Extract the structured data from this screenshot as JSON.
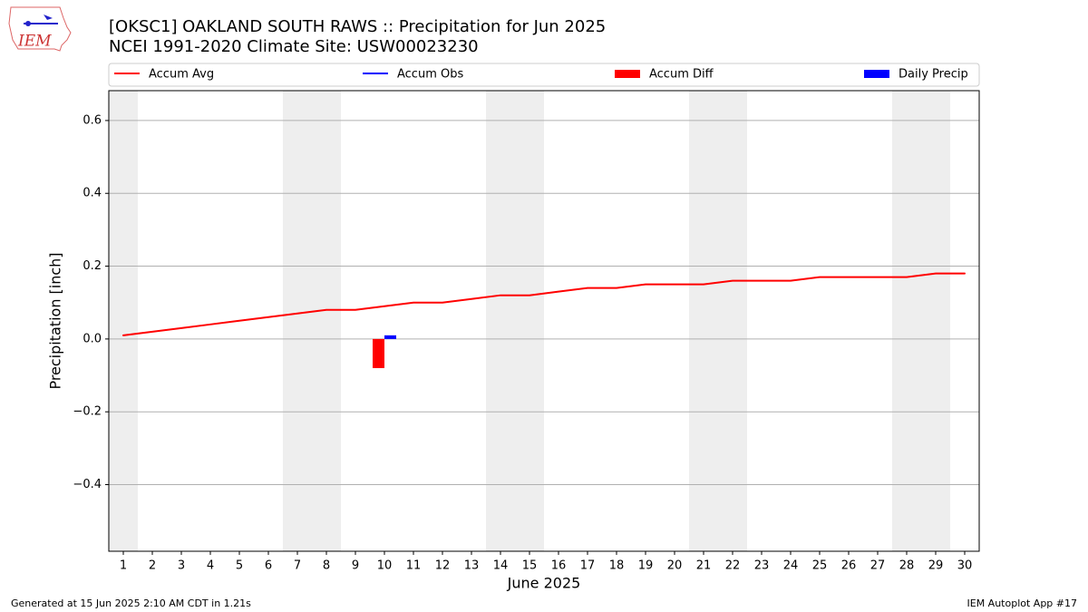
{
  "chart_data": {
    "type": "line",
    "title": "[OKSC1] OAKLAND SOUTH RAWS :: Precipitation for Jun 2025",
    "subtitle": "NCEI 1991-2020 Climate Site: USW00023230",
    "xlabel": "June 2025",
    "ylabel": "Precipitation [inch]",
    "x": [
      1,
      2,
      3,
      4,
      5,
      6,
      7,
      8,
      9,
      10,
      11,
      12,
      13,
      14,
      15,
      16,
      17,
      18,
      19,
      20,
      21,
      22,
      23,
      24,
      25,
      26,
      27,
      28,
      29,
      30
    ],
    "series": [
      {
        "name": "Accum Avg",
        "type": "line",
        "color": "#ff0000",
        "values": [
          0.01,
          0.02,
          0.03,
          0.04,
          0.05,
          0.06,
          0.07,
          0.08,
          0.08,
          0.09,
          0.1,
          0.1,
          0.11,
          0.12,
          0.12,
          0.13,
          0.14,
          0.14,
          0.15,
          0.15,
          0.15,
          0.16,
          0.16,
          0.16,
          0.17,
          0.17,
          0.17,
          0.17,
          0.18,
          0.18
        ]
      },
      {
        "name": "Accum Obs",
        "type": "line",
        "color": "#0000ff",
        "values": [
          null,
          null,
          null,
          null,
          null,
          null,
          null,
          null,
          null,
          0.01,
          null,
          null,
          null,
          null,
          null,
          null,
          null,
          null,
          null,
          null,
          null,
          null,
          null,
          null,
          null,
          null,
          null,
          null,
          null,
          null
        ]
      },
      {
        "name": "Accum Diff",
        "type": "bar",
        "color": "#ff0000",
        "values": [
          null,
          null,
          null,
          null,
          null,
          null,
          null,
          null,
          null,
          -0.08,
          null,
          null,
          null,
          null,
          null,
          null,
          null,
          null,
          null,
          null,
          null,
          null,
          null,
          null,
          null,
          null,
          null,
          null,
          null,
          null
        ]
      },
      {
        "name": "Daily Precip",
        "type": "bar",
        "color": "#0000ff",
        "values": [
          null,
          null,
          null,
          null,
          null,
          null,
          null,
          null,
          null,
          0.01,
          null,
          null,
          null,
          null,
          null,
          null,
          null,
          null,
          null,
          null,
          null,
          null,
          null,
          null,
          null,
          null,
          null,
          null,
          null,
          null
        ]
      }
    ],
    "xlim": [
      0.5,
      30.5
    ],
    "xticks": [
      1,
      2,
      3,
      4,
      5,
      6,
      7,
      8,
      9,
      10,
      11,
      12,
      13,
      14,
      15,
      16,
      17,
      18,
      19,
      20,
      21,
      22,
      23,
      24,
      25,
      26,
      27,
      28,
      29,
      30
    ],
    "ylim": [
      -0.583,
      0.682
    ],
    "yticks": [
      {
        "value": -0.4,
        "label": "−0.4"
      },
      {
        "value": -0.2,
        "label": "−0.2"
      },
      {
        "value": 0,
        "label": "0.0"
      },
      0.2,
      0.4,
      0.6
    ],
    "grid": true
  },
  "logo": "IEM",
  "footer_left": "Generated at 15 Jun 2025 2:10 AM CDT in 1.21s",
  "footer_right": "IEM Autoplot App #17"
}
